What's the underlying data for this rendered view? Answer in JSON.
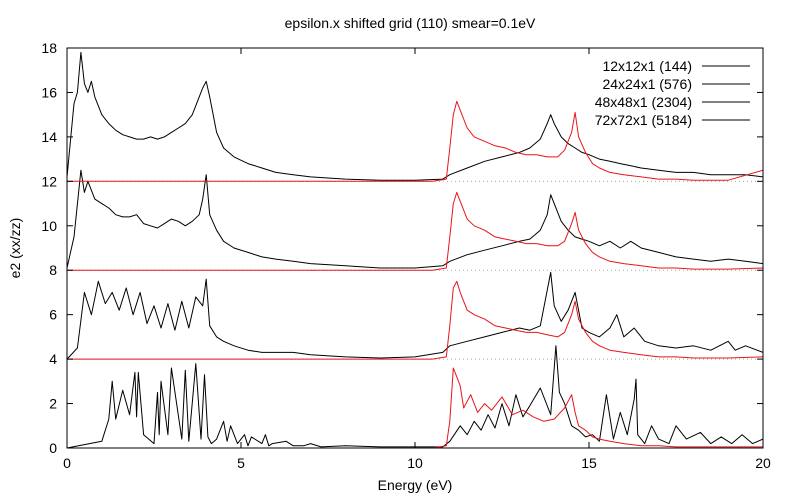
{
  "chart_data": {
    "type": "line",
    "title": "epsilon.x shifted grid (110) smear=0.1eV",
    "xlabel": "Energy (eV)",
    "ylabel": "e2 (xx/zz)",
    "xlim": [
      0,
      20
    ],
    "ylim": [
      0,
      18
    ],
    "x_ticks": [
      0,
      5,
      10,
      15,
      20
    ],
    "y_ticks": [
      0,
      2,
      4,
      6,
      8,
      10,
      12,
      14,
      16,
      18
    ],
    "x_tick_labels": [
      "0",
      "5",
      "10",
      "15",
      "20"
    ],
    "y_tick_labels": [
      "0",
      "2",
      "4",
      "6",
      "8",
      "10",
      "12",
      "14",
      "16",
      "18"
    ],
    "grid": false,
    "legend": {
      "placement": "top-right",
      "entries": [
        "12x12x1 (144)",
        "24x24x1 (576)",
        "48x48x1 (2304)",
        "72x72x1 (5184)"
      ]
    },
    "colors": {
      "black": "#000000",
      "red": "#e8141a",
      "baseline_dots": "#aaaaaa"
    },
    "baselines": [
      0,
      4,
      8,
      12
    ],
    "series": [
      {
        "name": "12x12x1 (144)",
        "offset": 0,
        "color": "#000000",
        "x": [
          0,
          1.0,
          1.2,
          1.3,
          1.4,
          1.6,
          1.8,
          1.95,
          2.0,
          2.05,
          2.2,
          2.5,
          2.6,
          2.65,
          2.7,
          2.9,
          3.0,
          3.3,
          3.4,
          3.5,
          3.7,
          3.85,
          3.95,
          4.05,
          4.15,
          4.3,
          4.5,
          4.6,
          4.7,
          4.9,
          5.1,
          5.2,
          5.3,
          5.6,
          5.7,
          5.8,
          5.9,
          6.3,
          6.5,
          6.8,
          7.0,
          7.3,
          8.0,
          9.0,
          10.0,
          10.8,
          11.0,
          11.3,
          11.5,
          11.7,
          11.9,
          12.1,
          12.3,
          12.5,
          12.7,
          12.9,
          13.1,
          13.3,
          13.6,
          13.9,
          14.05,
          14.15,
          14.3,
          14.5,
          14.7,
          14.9,
          15.1,
          15.3,
          15.5,
          15.7,
          15.9,
          16.1,
          16.3,
          16.35,
          16.4,
          16.6,
          16.8,
          17.0,
          17.3,
          17.5,
          17.8,
          18.2,
          18.5,
          18.8,
          19.1,
          19.4,
          19.7,
          20.0
        ],
        "y": [
          0,
          0.3,
          1.3,
          3.0,
          1.3,
          2.6,
          1.5,
          3.4,
          1.4,
          3.4,
          0.6,
          0.2,
          2.5,
          0.6,
          3.0,
          0.6,
          3.6,
          0.4,
          3.5,
          0.3,
          3.8,
          0.4,
          3.3,
          0.5,
          0.2,
          0.4,
          1.2,
          0.3,
          1.0,
          0.2,
          0.6,
          0.1,
          0.5,
          0.2,
          0.6,
          0.1,
          0.2,
          0.3,
          0.1,
          0.1,
          0.2,
          0.05,
          0.1,
          0.05,
          0.05,
          0.05,
          0.3,
          1.0,
          0.6,
          1.2,
          0.8,
          1.5,
          0.9,
          2.0,
          1.0,
          2.4,
          1.4,
          1.9,
          2.7,
          1.5,
          4.6,
          2.5,
          2.0,
          1.0,
          0.8,
          0.5,
          0.6,
          0.3,
          2.4,
          0.4,
          1.6,
          0.6,
          2.2,
          3.1,
          0.6,
          0.2,
          1.0,
          0.4,
          0.2,
          1.0,
          0.4,
          0.7,
          0.2,
          0.5,
          0.2,
          0.6,
          0.2,
          0.4
        ]
      },
      {
        "name": "",
        "offset": 0,
        "color": "#e8141a",
        "x": [
          0,
          10.5,
          10.9,
          11.0,
          11.1,
          11.2,
          11.3,
          11.4,
          11.6,
          11.8,
          12.0,
          12.2,
          12.5,
          12.8,
          13.1,
          13.4,
          13.7,
          14.0,
          14.3,
          14.5,
          14.6,
          14.7,
          14.9,
          15.1,
          15.3,
          15.6,
          16.0,
          16.5,
          17.0,
          17.5,
          18.0,
          19.0,
          20.0
        ],
        "y": [
          0,
          0,
          0.1,
          1.2,
          3.6,
          3.2,
          2.8,
          1.8,
          2.4,
          1.6,
          2.0,
          1.7,
          2.3,
          1.5,
          1.7,
          1.4,
          1.2,
          1.3,
          1.8,
          2.4,
          1.6,
          1.0,
          0.8,
          0.5,
          0.4,
          0.3,
          0.2,
          0.1,
          0.1,
          0.05,
          0.05,
          0.05,
          0.05
        ]
      },
      {
        "name": "24x24x1 (576)",
        "offset": 4,
        "color": "#000000",
        "x": [
          0,
          0.3,
          0.5,
          0.7,
          0.9,
          1.1,
          1.3,
          1.5,
          1.7,
          1.9,
          2.1,
          2.3,
          2.5,
          2.7,
          2.9,
          3.1,
          3.3,
          3.5,
          3.7,
          3.9,
          4.0,
          4.1,
          4.3,
          4.5,
          4.8,
          5.2,
          5.6,
          6.0,
          6.5,
          7.0,
          8.0,
          9.0,
          10.0,
          10.8,
          11.0,
          11.5,
          12.0,
          12.5,
          13.0,
          13.3,
          13.6,
          13.9,
          14.0,
          14.2,
          14.4,
          14.6,
          14.8,
          15.0,
          15.3,
          15.6,
          15.8,
          16.0,
          16.3,
          16.6,
          17.0,
          17.5,
          18.0,
          18.5,
          19.0,
          19.2,
          19.5,
          20.0
        ],
        "y": [
          0,
          0.5,
          3.0,
          2.0,
          3.5,
          2.5,
          3.0,
          2.2,
          3.2,
          2.0,
          3.0,
          1.6,
          2.4,
          1.4,
          2.5,
          1.3,
          2.6,
          1.4,
          2.8,
          2.4,
          3.6,
          1.5,
          1.0,
          0.8,
          0.6,
          0.4,
          0.3,
          0.3,
          0.3,
          0.2,
          0.1,
          0.05,
          0.1,
          0.3,
          0.6,
          0.8,
          1.0,
          1.2,
          1.4,
          1.3,
          1.5,
          3.9,
          2.4,
          1.7,
          2.2,
          3.0,
          1.4,
          1.2,
          1.0,
          1.4,
          2.0,
          1.0,
          1.4,
          0.8,
          0.6,
          0.5,
          0.6,
          0.4,
          0.8,
          0.4,
          0.6,
          0.3
        ]
      },
      {
        "name": "",
        "offset": 4,
        "color": "#e8141a",
        "x": [
          0,
          10.5,
          10.9,
          11.0,
          11.1,
          11.2,
          11.3,
          11.5,
          11.7,
          12.0,
          12.3,
          12.6,
          12.9,
          13.2,
          13.5,
          13.8,
          14.1,
          14.3,
          14.5,
          14.6,
          14.7,
          14.9,
          15.1,
          15.3,
          15.6,
          16.0,
          16.5,
          17.0,
          17.5,
          18.0,
          19.0,
          20.0
        ],
        "y": [
          0,
          0,
          0.1,
          1.5,
          3.2,
          3.5,
          3.0,
          2.2,
          2.0,
          1.8,
          1.5,
          1.4,
          1.3,
          1.2,
          1.2,
          1.1,
          1.0,
          1.2,
          2.0,
          2.6,
          1.8,
          1.2,
          0.8,
          0.6,
          0.4,
          0.3,
          0.2,
          0.1,
          0.1,
          0.05,
          0.05,
          0.1
        ]
      },
      {
        "name": "48x48x1 (2304)",
        "offset": 8,
        "color": "#000000",
        "x": [
          0,
          0.2,
          0.4,
          0.5,
          0.6,
          0.8,
          1.0,
          1.2,
          1.4,
          1.6,
          1.8,
          2.0,
          2.2,
          2.4,
          2.6,
          2.8,
          3.0,
          3.2,
          3.4,
          3.6,
          3.8,
          3.9,
          4.0,
          4.1,
          4.3,
          4.5,
          4.8,
          5.2,
          5.6,
          6.0,
          6.5,
          7.0,
          8.0,
          9.0,
          10.0,
          10.8,
          11.0,
          11.5,
          12.0,
          12.5,
          13.0,
          13.3,
          13.6,
          13.8,
          13.9,
          14.0,
          14.2,
          14.4,
          14.6,
          14.8,
          15.0,
          15.3,
          15.6,
          15.9,
          16.2,
          16.5,
          17.0,
          17.5,
          18.0,
          18.5,
          19.0,
          19.5,
          20.0
        ],
        "y": [
          0.1,
          1.5,
          4.5,
          3.5,
          4.0,
          3.2,
          3.0,
          2.8,
          2.5,
          2.4,
          2.4,
          2.5,
          2.1,
          2.0,
          1.9,
          2.1,
          2.3,
          2.2,
          2.0,
          2.2,
          2.5,
          3.2,
          4.3,
          2.5,
          1.8,
          1.3,
          1.0,
          0.8,
          0.6,
          0.5,
          0.4,
          0.3,
          0.2,
          0.1,
          0.1,
          0.2,
          0.4,
          0.7,
          0.9,
          1.1,
          1.3,
          1.4,
          1.8,
          2.5,
          3.4,
          3.0,
          2.2,
          1.8,
          1.5,
          1.4,
          1.3,
          1.1,
          1.3,
          1.0,
          1.3,
          1.0,
          0.8,
          0.6,
          0.5,
          0.4,
          0.5,
          0.4,
          0.3
        ]
      },
      {
        "name": "",
        "offset": 8,
        "color": "#e8141a",
        "x": [
          0,
          10.5,
          10.9,
          11.0,
          11.1,
          11.2,
          11.3,
          11.5,
          11.7,
          12.0,
          12.3,
          12.6,
          12.9,
          13.2,
          13.5,
          13.8,
          14.1,
          14.3,
          14.5,
          14.6,
          14.7,
          14.9,
          15.1,
          15.3,
          15.6,
          16.0,
          16.5,
          17.0,
          17.5,
          18.0,
          19.0,
          20.0
        ],
        "y": [
          0,
          0,
          0.1,
          1.5,
          3.0,
          3.5,
          3.1,
          2.3,
          2.0,
          1.8,
          1.5,
          1.4,
          1.3,
          1.2,
          1.2,
          1.1,
          1.1,
          1.3,
          2.1,
          2.6,
          1.8,
          1.2,
          0.8,
          0.6,
          0.4,
          0.3,
          0.2,
          0.1,
          0.1,
          0.05,
          0.05,
          0.1
        ]
      },
      {
        "name": "72x72x1 (5184)",
        "offset": 12,
        "color": "#000000",
        "x": [
          0,
          0.2,
          0.3,
          0.4,
          0.5,
          0.6,
          0.7,
          0.8,
          1.0,
          1.2,
          1.4,
          1.6,
          1.8,
          2.0,
          2.2,
          2.4,
          2.6,
          2.8,
          3.0,
          3.2,
          3.4,
          3.6,
          3.8,
          3.9,
          4.0,
          4.1,
          4.3,
          4.5,
          4.8,
          5.2,
          5.6,
          6.0,
          6.5,
          7.0,
          8.0,
          9.0,
          10.0,
          10.8,
          11.0,
          11.5,
          12.0,
          12.5,
          13.0,
          13.3,
          13.6,
          13.8,
          13.9,
          14.0,
          14.2,
          14.4,
          14.6,
          14.8,
          15.0,
          15.3,
          15.6,
          15.9,
          16.2,
          16.5,
          17.0,
          17.5,
          18.0,
          18.5,
          19.0,
          19.5,
          20.0
        ],
        "y": [
          0.2,
          3.5,
          4.0,
          5.8,
          4.4,
          4.0,
          4.5,
          3.8,
          3.0,
          2.6,
          2.3,
          2.1,
          2.0,
          1.9,
          1.9,
          2.0,
          1.9,
          2.0,
          2.2,
          2.4,
          2.6,
          3.0,
          3.8,
          4.2,
          4.5,
          3.8,
          2.2,
          1.5,
          1.1,
          0.8,
          0.6,
          0.4,
          0.3,
          0.2,
          0.1,
          0.05,
          0.05,
          0.1,
          0.3,
          0.6,
          0.9,
          1.1,
          1.3,
          1.5,
          1.9,
          2.6,
          3.0,
          2.6,
          2.0,
          1.7,
          1.5,
          1.3,
          1.2,
          1.0,
          0.9,
          0.8,
          0.7,
          0.6,
          0.5,
          0.4,
          0.4,
          0.3,
          0.3,
          0.3,
          0.2
        ]
      },
      {
        "name": "",
        "offset": 12,
        "color": "#e8141a",
        "x": [
          0,
          10.5,
          10.9,
          11.0,
          11.1,
          11.2,
          11.3,
          11.5,
          11.7,
          12.0,
          12.3,
          12.6,
          12.9,
          13.2,
          13.5,
          13.8,
          14.1,
          14.3,
          14.5,
          14.6,
          14.7,
          14.9,
          15.1,
          15.3,
          15.6,
          16.0,
          16.5,
          17.0,
          17.5,
          18.0,
          19.0,
          20.0
        ],
        "y": [
          0,
          0,
          0.1,
          1.5,
          3.0,
          3.6,
          3.2,
          2.4,
          2.0,
          1.8,
          1.6,
          1.5,
          1.3,
          1.2,
          1.2,
          1.1,
          1.1,
          1.4,
          2.2,
          3.1,
          2.0,
          1.3,
          0.8,
          0.6,
          0.4,
          0.3,
          0.2,
          0.1,
          0.1,
          0.05,
          0.05,
          0.5
        ]
      }
    ]
  }
}
